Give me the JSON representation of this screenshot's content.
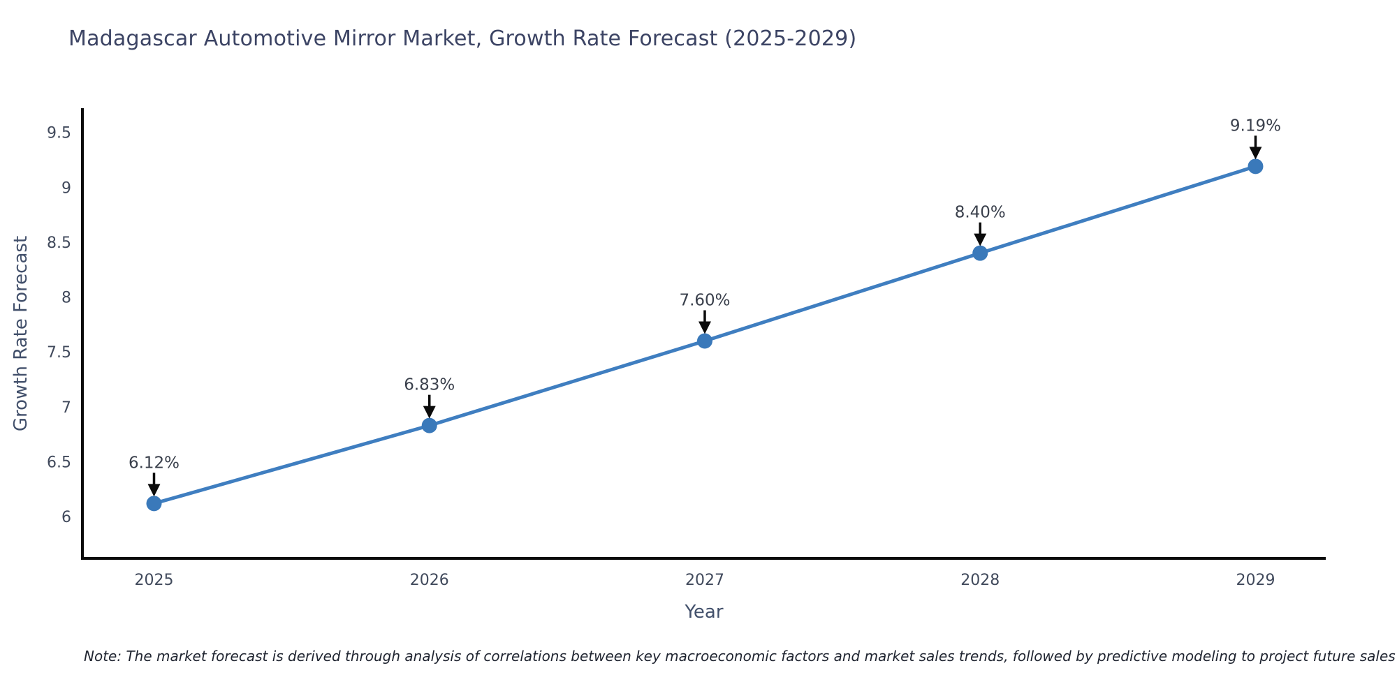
{
  "title": "Madagascar Automotive Mirror Market, Growth Rate Forecast (2025-2029)",
  "note": "Note: The market forecast is derived through analysis of correlations between key macroeconomic factors and market sales trends, followed by predictive modeling to project future sales",
  "chart_data": {
    "type": "line",
    "title": "Madagascar Automotive Mirror Market, Growth Rate Forecast (2025-2029)",
    "xlabel": "Year",
    "ylabel": "Growth Rate Forecast",
    "x": [
      2025,
      2026,
      2027,
      2028,
      2029
    ],
    "series": [
      {
        "name": "Growth Rate Forecast",
        "values": [
          6.12,
          6.83,
          7.6,
          8.4,
          9.19
        ]
      }
    ],
    "point_labels": [
      "6.12%",
      "6.83%",
      "7.60%",
      "8.40%",
      "9.19%"
    ],
    "yticks": [
      6,
      6.5,
      7,
      7.5,
      8,
      8.5,
      9,
      9.5
    ],
    "ylim": [
      5.62,
      9.72
    ],
    "xlim": [
      2024.74,
      2029.255
    ],
    "grid": false,
    "legend_position": "none",
    "annotation_style": "black-down-arrow",
    "colors": {
      "line": "#3f7ec0",
      "marker": "#3a79ba",
      "axis_line": "#0b0b0b",
      "tick_label": "#414a5c",
      "axis_title": "#42506b",
      "chart_title": "#3c4464",
      "annotation_text": "#3a404c",
      "annotation_arrow": "#0b0b0b",
      "note_text": "#1f2430",
      "background": "#ffffff"
    }
  }
}
